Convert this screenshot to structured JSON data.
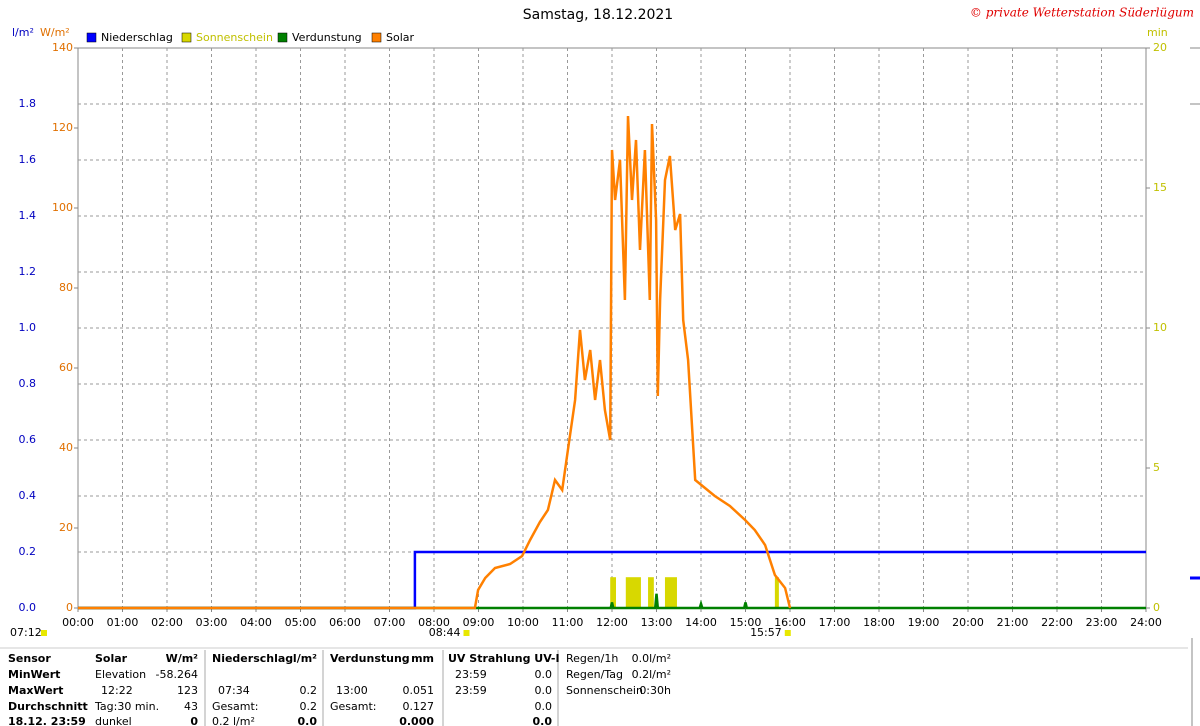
{
  "chart_data": {
    "type": "line",
    "title": "Samstag, 18.12.2021",
    "annotation": "© private Wetterstation Süderlügum",
    "ylabel": "l/m²",
    "y2label": "W/m²",
    "y3label": "min",
    "xlim": [
      0,
      24
    ],
    "xticks": [
      {
        "value": 0,
        "label": "00:00"
      },
      {
        "value": 1,
        "label": "01:00"
      },
      {
        "value": 2,
        "label": "02:00"
      },
      {
        "value": 3,
        "label": "03:00"
      },
      {
        "value": 4,
        "label": "04:00"
      },
      {
        "value": 5,
        "label": "05:00"
      },
      {
        "value": 6,
        "label": "06:00"
      },
      {
        "value": 7,
        "label": "07:00"
      },
      {
        "value": 8,
        "label": "08:00"
      },
      {
        "value": 9,
        "label": "09:00"
      },
      {
        "value": 10,
        "label": "10:00"
      },
      {
        "value": 11,
        "label": "11:00"
      },
      {
        "value": 12,
        "label": "12:00"
      },
      {
        "value": 13,
        "label": "13:00"
      },
      {
        "value": 14,
        "label": "14:00"
      },
      {
        "value": 15,
        "label": "15:00"
      },
      {
        "value": 16,
        "label": "16:00"
      },
      {
        "value": 17,
        "label": "17:00"
      },
      {
        "value": 18,
        "label": "18:00"
      },
      {
        "value": 19,
        "label": "19:00"
      },
      {
        "value": 20,
        "label": "20:00"
      },
      {
        "value": 21,
        "label": "21:00"
      },
      {
        "value": 22,
        "label": "22:00"
      },
      {
        "value": 23,
        "label": "23:00"
      },
      {
        "value": 24,
        "label": "24:00"
      }
    ],
    "ylim": [
      0,
      2
    ],
    "yticks": [
      {
        "value": 0,
        "label": "0.0"
      },
      {
        "value": 0.2,
        "label": "0.2"
      },
      {
        "value": 0.4,
        "label": "0.4"
      },
      {
        "value": 0.6,
        "label": "0.6"
      },
      {
        "value": 0.8,
        "label": "0.8"
      },
      {
        "value": 1.0,
        "label": "1.0"
      },
      {
        "value": 1.2,
        "label": "1.2"
      },
      {
        "value": 1.4,
        "label": "1.4"
      },
      {
        "value": 1.6,
        "label": "1.6"
      },
      {
        "value": 1.8,
        "label": "1.8"
      }
    ],
    "y2lim": [
      0,
      140
    ],
    "y2ticks": [
      0,
      20,
      40,
      60,
      80,
      100,
      120,
      140
    ],
    "y3lim": [
      0,
      20
    ],
    "y3ticks": [
      0,
      5,
      10,
      15,
      20
    ],
    "grid": true,
    "series": [
      {
        "name": "Niederschlag",
        "color": "#0000ff",
        "axis": "y",
        "x": [
          0,
          7.57,
          7.57,
          24
        ],
        "values": [
          0,
          0,
          0.2,
          0.2
        ]
      },
      {
        "name": "Sonnenschein",
        "color": "#d8d800",
        "axis": "y3",
        "kind": "bar",
        "x": [
          11.96,
          12.31,
          12.81,
          13.19,
          15.66
        ],
        "x_end": [
          12.09,
          12.65,
          12.94,
          13.46,
          15.75
        ],
        "values": [
          1.1,
          1.1,
          1.1,
          1.1,
          1.1
        ]
      },
      {
        "name": "Verdunstung",
        "color": "#008000",
        "axis": "y",
        "x": [
          0,
          11.97,
          12.0,
          12.03,
          12.97,
          13.0,
          13.03,
          13.97,
          14.0,
          14.03,
          14.97,
          15.0,
          15.03,
          24
        ],
        "values": [
          0,
          0,
          0.02,
          0,
          0,
          0.051,
          0,
          0,
          0.015,
          0,
          0,
          0.02,
          0,
          0
        ]
      },
      {
        "name": "Solar",
        "color": "#ff8000",
        "axis": "y2",
        "x": [
          0,
          8.92,
          8.99,
          9.15,
          9.37,
          9.71,
          9.98,
          10.16,
          10.38,
          10.56,
          10.72,
          10.88,
          11.01,
          11.17,
          11.28,
          11.39,
          11.51,
          11.62,
          11.73,
          11.84,
          11.96,
          12.0,
          12.07,
          12.18,
          12.29,
          12.36,
          12.45,
          12.54,
          12.63,
          12.74,
          12.85,
          12.9,
          12.99,
          13.03,
          13.08,
          13.19,
          13.3,
          13.42,
          13.53,
          13.6,
          13.71,
          13.87,
          14.09,
          14.31,
          14.65,
          14.99,
          15.21,
          15.44,
          15.66,
          15.89,
          16.0
        ],
        "values": [
          0,
          0,
          4.5,
          7.5,
          10,
          11,
          13,
          17,
          21.5,
          24.5,
          32,
          29.5,
          39.5,
          52,
          69.5,
          57,
          64.5,
          52,
          62,
          49.5,
          42,
          114.5,
          102,
          112,
          77,
          123,
          102,
          117,
          89.5,
          114.5,
          77,
          121,
          97,
          53,
          77,
          107,
          113,
          94.5,
          98.5,
          72,
          62,
          32,
          30,
          28,
          25.5,
          22,
          19.5,
          15.75,
          8.25,
          5,
          0
        ]
      }
    ],
    "sun_marks": [
      {
        "label": "07:12",
        "x": 7.2
      },
      {
        "label": "08:44",
        "x": 8.73
      },
      {
        "label": "15:57",
        "x": 15.95
      }
    ]
  },
  "table": {
    "rows": [
      [
        "Sensor",
        "Solar",
        "W/m²",
        "Niederschlag",
        "l/m²",
        "Verdunstung",
        "mm",
        "UV Strahlung UV-I",
        null,
        "Regen/1h",
        "0.0l/m²"
      ],
      [
        "MinWert",
        "Elevation",
        "-58.264",
        null,
        null,
        null,
        null,
        "23:59",
        "0.0",
        "Regen/Tag",
        "0.2l/m²"
      ],
      [
        "MaxWert",
        "12:22",
        "123",
        "07:34",
        "0.2",
        "13:00",
        "0.051",
        "23:59",
        "0.0",
        "Sonnenschein",
        "0:30h"
      ],
      [
        "Durchschnitt",
        "Tag:30 min.",
        "43",
        "Gesamt:",
        "0.2",
        "Gesamt:",
        "0.127",
        null,
        "0.0",
        null,
        null
      ],
      [
        "18.12. 23:59",
        "dunkel",
        "0",
        "0.2 l/m²",
        "0.0",
        null,
        "0.000",
        null,
        "0.0",
        null,
        null
      ]
    ]
  }
}
